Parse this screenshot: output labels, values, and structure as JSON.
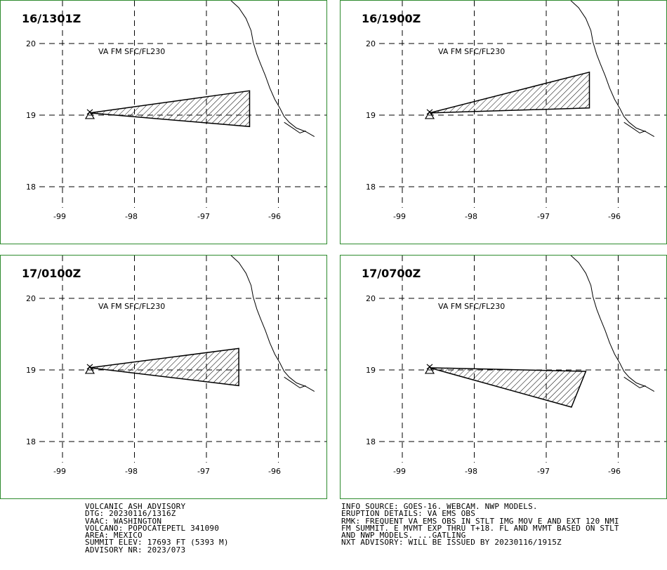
{
  "panels": [
    {
      "title": "16/1301Z",
      "label": "VA FM SFC/FL230",
      "lat_ticks": [
        "20",
        "19",
        "18"
      ],
      "lon_ticks": [
        "-99",
        "-98",
        "-97",
        "-96"
      ],
      "ash_polygon": [
        [
          -98.62,
          19.03
        ],
        [
          -96.4,
          19.34
        ],
        [
          -96.4,
          18.84
        ],
        [
          -98.62,
          19.03
        ]
      ]
    },
    {
      "title": "16/1900Z",
      "label": "VA FM SFC/FL230",
      "lat_ticks": [
        "20",
        "19",
        "18"
      ],
      "lon_ticks": [
        "-99",
        "-98",
        "-97",
        "-96"
      ],
      "ash_polygon": [
        [
          -98.62,
          19.03
        ],
        [
          -96.4,
          19.6
        ],
        [
          -96.4,
          19.1
        ],
        [
          -98.62,
          19.03
        ]
      ]
    },
    {
      "title": "17/0100Z",
      "label": "VA FM SFC/FL230",
      "lat_ticks": [
        "20",
        "19",
        "18"
      ],
      "lon_ticks": [
        "-99",
        "-98",
        "-97",
        "-96"
      ],
      "ash_polygon": [
        [
          -98.62,
          19.03
        ],
        [
          -96.55,
          19.3
        ],
        [
          -96.55,
          18.78
        ],
        [
          -98.62,
          19.03
        ]
      ]
    },
    {
      "title": "17/0700Z",
      "label": "VA FM SFC/FL230",
      "lat_ticks": [
        "20",
        "19",
        "18"
      ],
      "lon_ticks": [
        "-99",
        "-98",
        "-97",
        "-96"
      ],
      "ash_polygon": [
        [
          -98.62,
          19.03
        ],
        [
          -96.45,
          18.98
        ],
        [
          -96.65,
          18.48
        ],
        [
          -98.62,
          19.03
        ]
      ]
    }
  ],
  "volcano": {
    "lon": -98.62,
    "lat": 19.02
  },
  "advisory_left": [
    "VOLCANIC ASH ADVISORY",
    "DTG: 20230116/1316Z",
    "VAAC: WASHINGTON",
    "VOLCANO: POPOCATEPETL 341090",
    "AREA: MEXICO",
    "SUMMIT ELEV: 17693 FT (5393 M)",
    "ADVISORY NR: 2023/073"
  ],
  "advisory_right": [
    "INFO SOURCE: GOES-16. WEBCAM. NWP MODELS.",
    "ERUPTION DETAILS: VA EMS OBS",
    "RMK: FREQUENT VA EMS OBS IN STLT IMG MOV E AND EXT 120 NMI",
    "FM SUMMIT. E MVMT EXP THRU T+18. FL AND MVMT BASED ON STLT",
    "AND NWP MODELS. ...GATLING",
    "NXT ADVISORY: WILL BE ISSUED BY 20230116/1915Z"
  ],
  "colors": {
    "panel_border": "#2e8b2e",
    "lines": "#000000"
  }
}
